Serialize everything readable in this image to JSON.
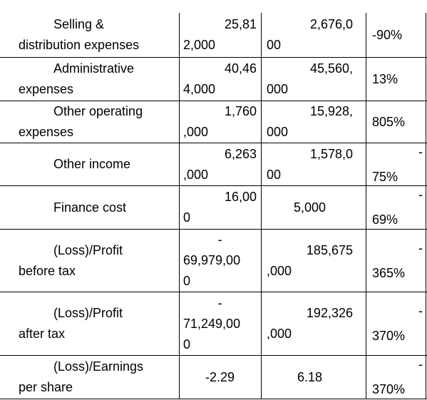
{
  "table": {
    "rows": [
      [
        [
          "Selling &",
          "distribution expenses"
        ],
        [
          "25,81",
          "2,000"
        ],
        [
          "2,676,0",
          "00"
        ],
        [
          "-90%"
        ]
      ],
      [
        [
          "Administrative",
          "expenses"
        ],
        [
          "40,46",
          "4,000"
        ],
        [
          "45,560,",
          "000"
        ],
        [
          "13%"
        ]
      ],
      [
        [
          "Other operating",
          "expenses"
        ],
        [
          "1,760",
          ",000"
        ],
        [
          "15,928,",
          "000"
        ],
        [
          "805%"
        ]
      ],
      [
        [
          "Other income"
        ],
        [
          "6,263",
          ",000"
        ],
        [
          "1,578,0",
          "00"
        ],
        [
          "-",
          "75%"
        ]
      ],
      [
        [
          "Finance cost"
        ],
        [
          "16,00",
          "0"
        ],
        [
          "5,000"
        ],
        [
          "-",
          "69%"
        ]
      ],
      [
        [
          "(Loss)/Profit",
          "before tax"
        ],
        [
          "-",
          "69,979,00",
          "0"
        ],
        [
          "185,675",
          ",000"
        ],
        [
          "-",
          "365%"
        ]
      ],
      [
        [
          "(Loss)/Profit",
          "after tax"
        ],
        [
          "-",
          "71,249,00",
          "0"
        ],
        [
          "192,326",
          ",000"
        ],
        [
          "-",
          "370%"
        ]
      ],
      [
        [
          "(Loss)/Earnings",
          "per share"
        ],
        [
          "-2.29"
        ],
        [
          "6.18"
        ],
        [
          "-",
          "370%"
        ]
      ]
    ]
  }
}
